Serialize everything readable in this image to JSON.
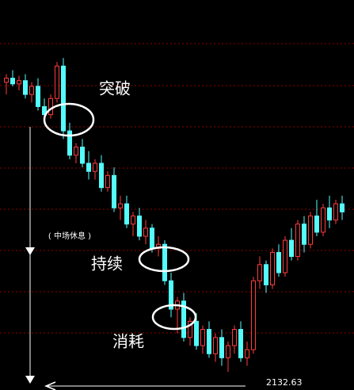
{
  "chart_data": {
    "type": "candlestick",
    "ylim": [
      2120,
      2570
    ],
    "up_color": "#ff3c3c",
    "down_color": "#54fcfc",
    "open": [
      2490,
      2495,
      2488,
      2492,
      2475,
      2485,
      2460,
      2450,
      2470,
      2510,
      2430,
      2400,
      2410,
      2390,
      2380,
      2390,
      2360,
      2375,
      2335,
      2340,
      2315,
      2325,
      2300,
      2310,
      2285,
      2290,
      2245,
      2210,
      2220,
      2175,
      2195,
      2165,
      2185,
      2155,
      2175,
      2150,
      2165,
      2185,
      2150,
      2160,
      2245,
      2265,
      2240,
      2280,
      2255,
      2295,
      2275,
      2315,
      2290,
      2325,
      2305,
      2335,
      2320,
      2340
    ],
    "high": [
      2500,
      2505,
      2498,
      2500,
      2490,
      2495,
      2470,
      2475,
      2515,
      2520,
      2440,
      2415,
      2420,
      2405,
      2395,
      2400,
      2380,
      2385,
      2350,
      2350,
      2330,
      2335,
      2320,
      2315,
      2300,
      2295,
      2255,
      2225,
      2230,
      2200,
      2205,
      2190,
      2195,
      2180,
      2185,
      2170,
      2190,
      2195,
      2170,
      2250,
      2275,
      2270,
      2285,
      2290,
      2300,
      2310,
      2320,
      2325,
      2330,
      2345,
      2340,
      2350,
      2345,
      2350
    ],
    "low": [
      2475,
      2485,
      2480,
      2470,
      2465,
      2455,
      2445,
      2445,
      2465,
      2420,
      2395,
      2390,
      2385,
      2370,
      2370,
      2355,
      2355,
      2330,
      2320,
      2310,
      2300,
      2295,
      2290,
      2280,
      2275,
      2240,
      2200,
      2180,
      2170,
      2165,
      2160,
      2155,
      2150,
      2145,
      2140,
      2132.63,
      2155,
      2145,
      2140,
      2155,
      2235,
      2230,
      2235,
      2250,
      2250,
      2270,
      2270,
      2280,
      2285,
      2300,
      2300,
      2310,
      2315,
      2320
    ],
    "close": [
      2495,
      2488,
      2492,
      2475,
      2485,
      2460,
      2450,
      2470,
      2510,
      2430,
      2400,
      2410,
      2390,
      2380,
      2390,
      2360,
      2375,
      2335,
      2340,
      2315,
      2325,
      2300,
      2310,
      2285,
      2290,
      2245,
      2210,
      2220,
      2175,
      2195,
      2165,
      2185,
      2155,
      2175,
      2150,
      2165,
      2185,
      2150,
      2160,
      2245,
      2265,
      2240,
      2280,
      2255,
      2295,
      2275,
      2315,
      2290,
      2325,
      2305,
      2335,
      2320,
      2340,
      2330
    ],
    "annotations": [
      "突破",
      "( 中场休息 )",
      "持续",
      "消耗"
    ]
  }
}
